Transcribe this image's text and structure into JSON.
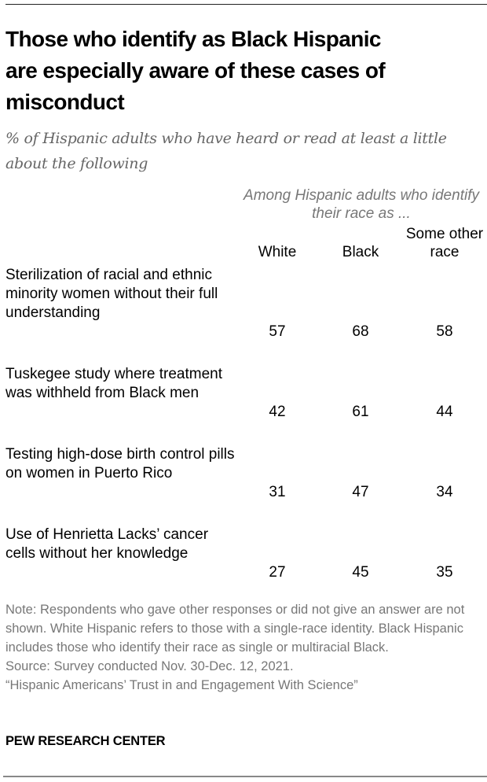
{
  "chart_data": {
    "type": "table",
    "title_lines": [
      "Those who identify as Black Hispanic",
      "are especially aware of these cases of",
      "misconduct"
    ],
    "subtitle": "% of Hispanic adults who have heard or read at least a little about the following",
    "column_group_label": "Among Hispanic adults who identify their race as ...",
    "columns": [
      "White",
      "Black",
      "Some other race"
    ],
    "rows": [
      {
        "label": "Sterilization of racial and ethnic minority women without their full understanding",
        "values": [
          57,
          68,
          58
        ]
      },
      {
        "label": "Tuskegee study where treatment was withheld from Black men",
        "values": [
          42,
          61,
          44
        ]
      },
      {
        "label": "Testing high-dose birth control pills on women in Puerto Rico",
        "values": [
          31,
          47,
          34
        ]
      },
      {
        "label": "Use of Henrietta Lacks’ cancer cells without her knowledge",
        "values": [
          27,
          45,
          35
        ]
      }
    ],
    "note": "Note: Respondents who gave other responses or did not give an answer are not shown. White Hispanic refers to those with a single-race identity. Black Hispanic includes those who identify their race as single or multiracial Black.",
    "source": "Source: Survey conducted Nov. 30-Dec. 12, 2021.",
    "report": "“Hispanic Americans’ Trust in and Engagement With Science”",
    "brand": "PEW RESEARCH CENTER"
  }
}
